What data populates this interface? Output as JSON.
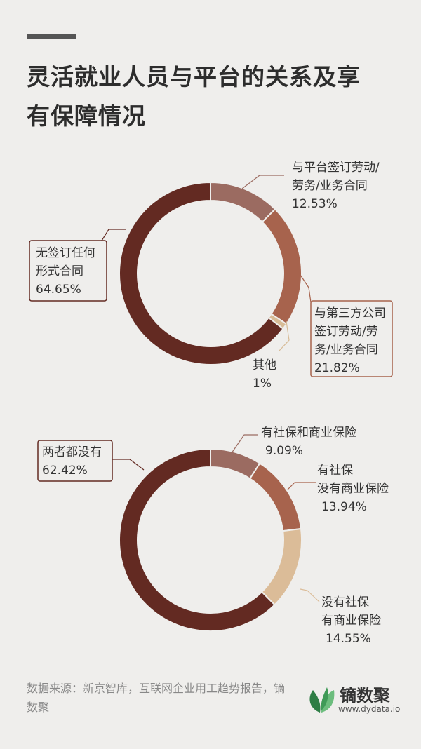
{
  "title_line1": "灵活就业人员与平台的关系及享",
  "title_line2": "有保障情况",
  "chart_data": [
    {
      "type": "pie",
      "donut": true,
      "slices": [
        {
          "label": [
            "与平台签订劳动/",
            "劳务/业务合同"
          ],
          "value": 12.53,
          "value_label": "12.53%",
          "color": "#9b6b61"
        },
        {
          "label": [
            "与第三方公司",
            "签订劳动/劳",
            "务/业务合同"
          ],
          "value": 21.82,
          "value_label": "21.82%",
          "color": "#a7634d"
        },
        {
          "label": [
            "其他"
          ],
          "value": 1,
          "value_label": "1%",
          "color": "#d7bb96"
        },
        {
          "label": [
            "无签订任何",
            "形式合同"
          ],
          "value": 64.65,
          "value_label": "64.65%",
          "color": "#632a22"
        }
      ]
    },
    {
      "type": "pie",
      "donut": true,
      "slices": [
        {
          "label": [
            "有社保和商业保险"
          ],
          "value": 9.09,
          "value_label": "9.09%",
          "color": "#9b6b61"
        },
        {
          "label": [
            "有社保",
            "没有商业保险"
          ],
          "value": 13.94,
          "value_label": "13.94%",
          "color": "#a7634d"
        },
        {
          "label": [
            "没有社保",
            "有商业保险"
          ],
          "value": 14.55,
          "value_label": "14.55%",
          "color": "#dbbc98"
        },
        {
          "label": [
            "两者都没有"
          ],
          "value": 62.42,
          "value_label": "62.42%",
          "color": "#632a22"
        }
      ]
    }
  ],
  "footer_source": "数据来源：新京智库，互联网企业用工趋势报告，镝数聚",
  "logo_name": "镝数聚",
  "logo_url": "www.dydata.io",
  "colors": {
    "leaf_dark": "#2e7d45",
    "leaf_light": "#6cbd7d"
  }
}
